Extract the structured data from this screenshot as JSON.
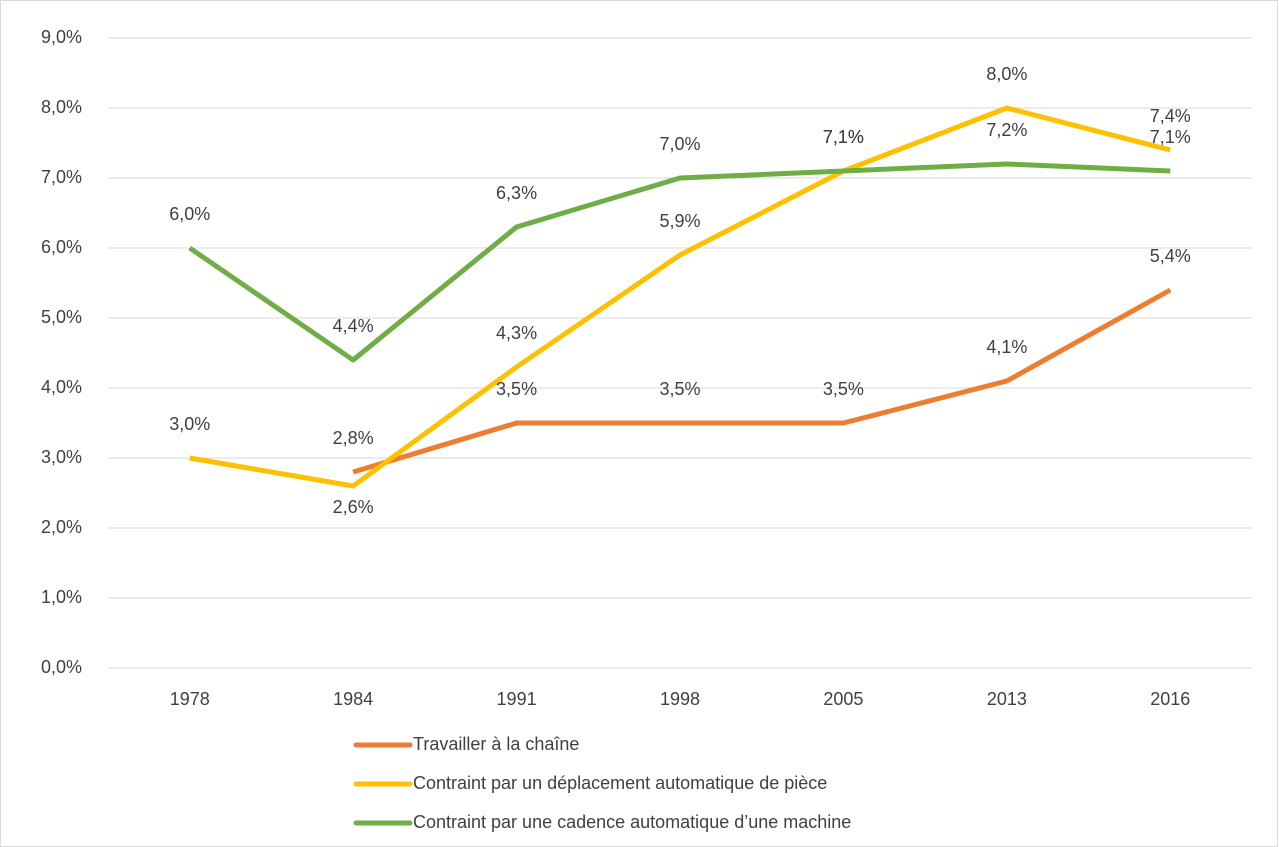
{
  "chart_data": {
    "type": "line",
    "categories": [
      "1978",
      "1984",
      "1991",
      "1998",
      "2005",
      "2013",
      "2016"
    ],
    "series": [
      {
        "name": "Travailler à la chaîne",
        "color": "#ED7D31",
        "values": [
          null,
          2.8,
          3.5,
          3.5,
          3.5,
          4.1,
          5.4
        ],
        "value_labels": [
          null,
          "2,8%",
          "3,5%",
          "3,5%",
          "3,5%",
          "4,1%",
          "5,4%"
        ]
      },
      {
        "name": "Contraint par un déplacement automatique de pièce",
        "color": "#FFC000",
        "values": [
          3.0,
          2.6,
          4.3,
          5.9,
          7.1,
          8.0,
          7.4
        ],
        "value_labels": [
          "3,0%",
          "2,6%",
          "4,3%",
          "5,9%",
          "7,1%",
          "8,0%",
          "7,4%"
        ]
      },
      {
        "name": "Contraint par une cadence automatique d’une machine",
        "color": "#70AD47",
        "values": [
          6.0,
          4.4,
          6.3,
          7.0,
          7.1,
          7.2,
          7.1
        ],
        "value_labels": [
          "6,0%",
          "4,4%",
          "6,3%",
          "7,0%",
          "7,1%",
          "7,2%",
          "7,1%"
        ]
      }
    ],
    "ylim": [
      0,
      9
    ],
    "yticks": [
      {
        "value": 0,
        "label": "0,0%"
      },
      {
        "value": 1,
        "label": "1,0%"
      },
      {
        "value": 2,
        "label": "2,0%"
      },
      {
        "value": 3,
        "label": "3,0%"
      },
      {
        "value": 4,
        "label": "4,0%"
      },
      {
        "value": 5,
        "label": "5,0%"
      },
      {
        "value": 6,
        "label": "6,0%"
      },
      {
        "value": 7,
        "label": "7,0%"
      },
      {
        "value": 8,
        "label": "8,0%"
      },
      {
        "value": 9,
        "label": "9,0%"
      }
    ],
    "grid": true,
    "legend": "bottom"
  }
}
